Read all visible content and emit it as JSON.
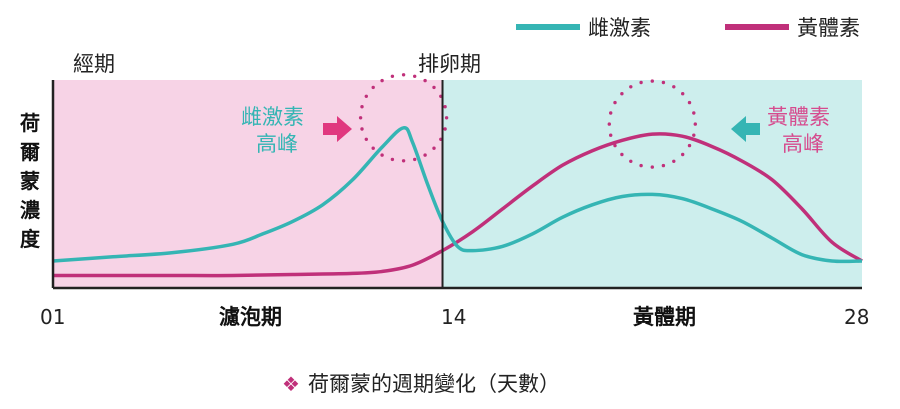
{
  "chart_data": {
    "type": "line",
    "title": "",
    "ylabel": "荷爾蒙濃度",
    "ylabel_chars": [
      "荷",
      "爾",
      "蒙",
      "濃",
      "度"
    ],
    "xlim": [
      1,
      28
    ],
    "ylim": [
      0,
      100
    ],
    "x_ticks": [
      "01",
      "14",
      "28"
    ],
    "x_tick_values": [
      1,
      14,
      28
    ],
    "phases_bottom": [
      {
        "label": "濾泡期",
        "x_center": 7.5
      },
      {
        "label": "黃體期",
        "x_center": 21
      }
    ],
    "phases_top": [
      {
        "label": "經期",
        "x_center": 2.6
      },
      {
        "label": "排卵期",
        "x_center": 14
      }
    ],
    "regions": [
      {
        "from": 1,
        "to": 14,
        "color": "#f7d3e6",
        "name": "follicular"
      },
      {
        "from": 14,
        "to": 28,
        "color": "#cdeeed",
        "name": "luteal"
      }
    ],
    "divider_x": 14,
    "series": [
      {
        "name": "雌激素",
        "color": "#35b5b4",
        "x": [
          1,
          3,
          5,
          7,
          8,
          9,
          10,
          11,
          12,
          12.7,
          13,
          13.5,
          14,
          14.5,
          15,
          16,
          17,
          18,
          19,
          20,
          21,
          22,
          23,
          24,
          25,
          26,
          27,
          28
        ],
        "y": [
          13,
          15,
          17,
          21,
          26,
          32,
          40,
          52,
          68,
          77,
          70,
          50,
          32,
          20,
          18,
          20,
          26,
          34,
          40,
          44,
          45,
          43,
          38,
          32,
          24,
          16,
          13,
          13
        ]
      },
      {
        "name": "黃體素",
        "color": "#c0307a",
        "x": [
          1,
          3,
          5,
          7,
          9,
          11,
          12,
          13,
          14,
          15,
          16,
          17,
          18,
          19,
          20,
          21,
          22,
          23,
          24,
          25,
          26,
          27,
          28
        ],
        "y": [
          6,
          6,
          6,
          6,
          6.5,
          7,
          8,
          11,
          18,
          27,
          38,
          49,
          59,
          66,
          71,
          74,
          73,
          68,
          61,
          52,
          38,
          22,
          13
        ]
      }
    ],
    "annotations": [
      {
        "text_lines": [
          "雌激素",
          "高峰"
        ],
        "color": "#35b5b4",
        "arrow_color": "#e0387f",
        "arrow": "right"
      },
      {
        "text_lines": [
          "黃體素",
          "高峰"
        ],
        "color": "#d64b8e",
        "arrow_color": "#35b5b4",
        "arrow": "left"
      }
    ],
    "peak_circles": [
      {
        "x": 12.7,
        "y": 77,
        "color": "#c0307a"
      },
      {
        "x": 21,
        "y": 74,
        "color": "#c0307a"
      }
    ],
    "legend": {
      "placement": "top-right"
    },
    "caption": {
      "bullet": "❖",
      "text": "荷爾蒙的週期變化（天數）",
      "bullet_color": "#c0307a"
    },
    "grid": false
  }
}
